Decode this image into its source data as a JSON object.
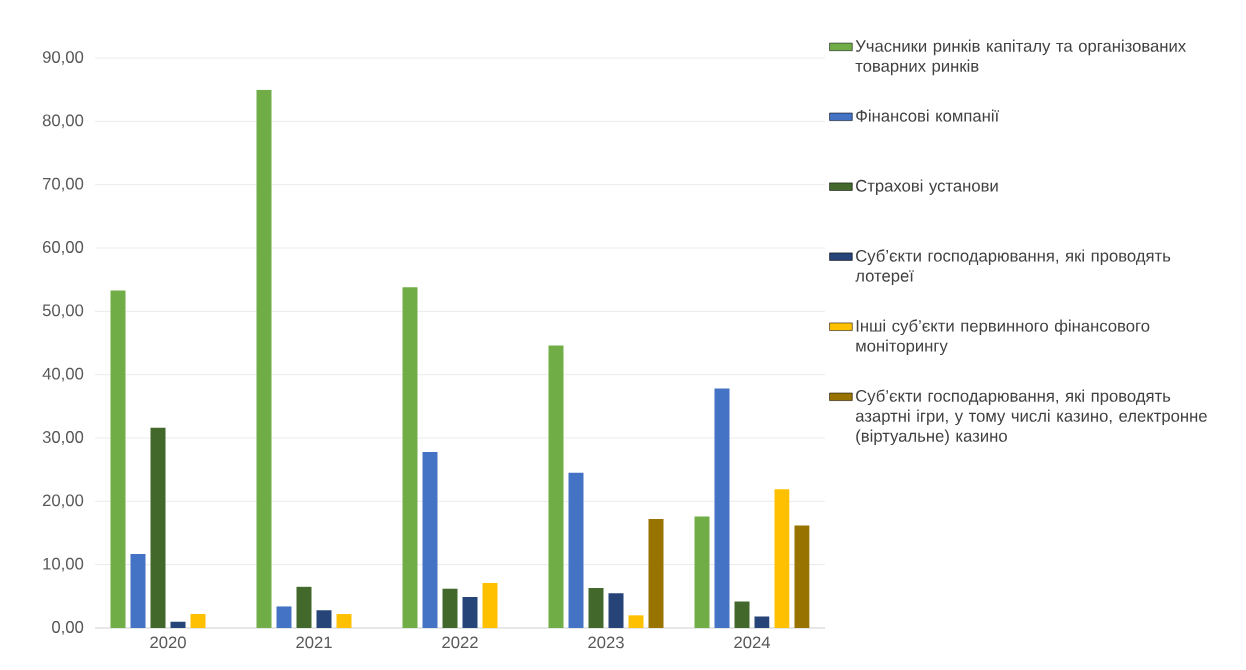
{
  "chart_data": {
    "type": "bar",
    "categories": [
      "2020",
      "2021",
      "2022",
      "2023",
      "2024"
    ],
    "series": [
      {
        "name": "Учасники ринків капіталу та організованих товарних ринків",
        "color": "#70ad47",
        "values": [
          53.3,
          85.0,
          53.8,
          44.6,
          17.6
        ]
      },
      {
        "name": "Фінансові компанії",
        "color": "#4472c4",
        "values": [
          11.7,
          3.4,
          27.8,
          24.5,
          37.8
        ]
      },
      {
        "name": "Страхові установи",
        "color": "#43682b",
        "values": [
          31.6,
          6.5,
          6.2,
          6.3,
          4.2
        ]
      },
      {
        "name": "Суб’єкти господарювання, які проводять лотереї",
        "color": "#264478",
        "values": [
          1.0,
          2.8,
          4.9,
          5.5,
          1.8
        ]
      },
      {
        "name": "Інші суб’єкти первинного фінансового моніторингу",
        "color": "#ffc000",
        "values": [
          2.2,
          2.2,
          7.1,
          2.0,
          21.9
        ]
      },
      {
        "name": "Суб’єкти господарювання, які проводять азартні ігри, у тому числі казино, електронне (віртуальне) казино",
        "color": "#997300",
        "values": [
          null,
          null,
          null,
          17.2,
          16.2
        ]
      }
    ],
    "ylim": [
      0,
      90
    ],
    "yticks": [
      {
        "value": 0,
        "label": "0,00"
      },
      {
        "value": 10,
        "label": "10,00"
      },
      {
        "value": 20,
        "label": "20,00"
      },
      {
        "value": 30,
        "label": "30,00"
      },
      {
        "value": 40,
        "label": "40,00"
      },
      {
        "value": 50,
        "label": "50,00"
      },
      {
        "value": 60,
        "label": "60,00"
      },
      {
        "value": 70,
        "label": "70,00"
      },
      {
        "value": 80,
        "label": "80,00"
      },
      {
        "value": 90,
        "label": "90,00"
      }
    ],
    "grid": "y",
    "legend": "right"
  }
}
